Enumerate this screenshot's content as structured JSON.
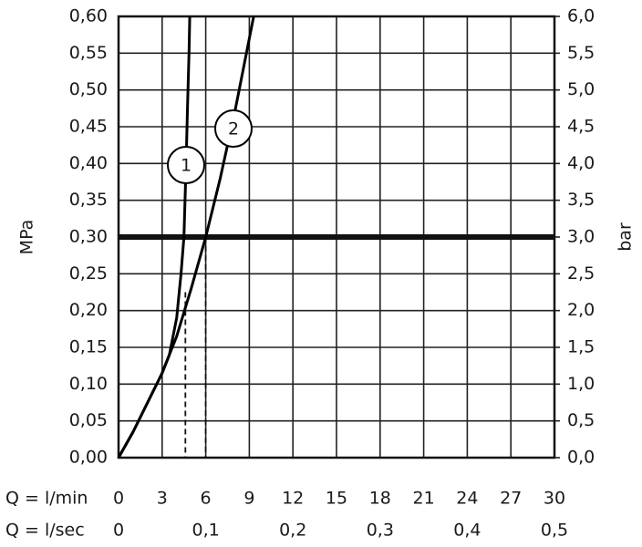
{
  "chart_data": {
    "type": "line",
    "xlabel_rows": [
      "Q = l/min",
      "Q = l/sec"
    ],
    "ylabel": "MPa",
    "y2label": "bar",
    "xlim": [
      0,
      30
    ],
    "xticks": [
      0,
      3,
      6,
      9,
      12,
      15,
      18,
      21,
      24,
      27,
      30
    ],
    "x2lim": [
      0,
      0.5
    ],
    "x2ticks": [
      0,
      {
        "value": 0.1,
        "label": "0,1"
      },
      {
        "value": 0.2,
        "label": "0,2"
      },
      {
        "value": 0.3,
        "label": "0,3"
      },
      {
        "value": 0.4,
        "label": "0,4"
      },
      {
        "value": 0.5,
        "label": "0,5"
      }
    ],
    "ylim": [
      0,
      0.6
    ],
    "yticks": [
      {
        "value": 0,
        "label": "0,00"
      },
      {
        "value": 0.05,
        "label": "0,05"
      },
      {
        "value": 0.1,
        "label": "0,10"
      },
      {
        "value": 0.15,
        "label": "0,15"
      },
      {
        "value": 0.2,
        "label": "0,20"
      },
      {
        "value": 0.25,
        "label": "0,25"
      },
      {
        "value": 0.3,
        "label": "0,30"
      },
      {
        "value": 0.35,
        "label": "0,35"
      },
      {
        "value": 0.4,
        "label": "0,40"
      },
      {
        "value": 0.45,
        "label": "0,45"
      },
      {
        "value": 0.5,
        "label": "0,50"
      },
      {
        "value": 0.55,
        "label": "0,55"
      },
      {
        "value": 0.6,
        "label": "0,60"
      }
    ],
    "y2lim": [
      0,
      6
    ],
    "y2ticks": [
      {
        "value": 0,
        "label": "0,0"
      },
      {
        "value": 0.5,
        "label": "0,5"
      },
      {
        "value": 1,
        "label": "1,0"
      },
      {
        "value": 1.5,
        "label": "1,5"
      },
      {
        "value": 2,
        "label": "2,0"
      },
      {
        "value": 2.5,
        "label": "2,5"
      },
      {
        "value": 3,
        "label": "3,0"
      },
      {
        "value": 3.5,
        "label": "3,5"
      },
      {
        "value": 4,
        "label": "4,0"
      },
      {
        "value": 4.5,
        "label": "4,5"
      },
      {
        "value": 5,
        "label": "5,0"
      },
      {
        "value": 5.5,
        "label": "5,5"
      },
      {
        "value": 6,
        "label": "6,0"
      }
    ],
    "grid": true,
    "reference_line": 0.3,
    "drop_lines": [
      {
        "x": 4.6,
        "y": 0.225
      },
      {
        "x": 6,
        "y": 0.3
      }
    ],
    "series": [
      {
        "name": "1",
        "color": "#000000",
        "x": [
          0,
          1,
          2,
          3,
          3.5,
          4,
          4.3,
          4.5,
          4.65,
          4.75,
          4.85,
          4.9
        ],
        "values": [
          0,
          0.035,
          0.075,
          0.115,
          0.14,
          0.19,
          0.25,
          0.3,
          0.4,
          0.48,
          0.55,
          0.6
        ]
      },
      {
        "name": "2",
        "color": "#000000",
        "x": [
          0,
          1,
          2,
          3,
          4,
          5,
          6,
          7,
          8,
          9.3
        ],
        "values": [
          0,
          0.035,
          0.075,
          0.115,
          0.165,
          0.23,
          0.3,
          0.38,
          0.47,
          0.6
        ]
      }
    ]
  }
}
